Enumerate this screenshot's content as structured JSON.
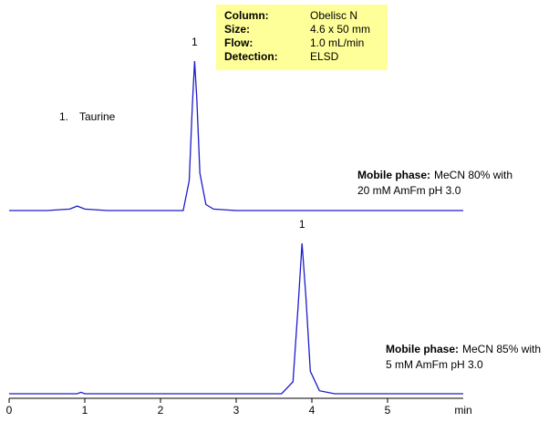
{
  "chart_data": {
    "type": "line",
    "xlabel": "min",
    "xlim": [
      0,
      6
    ],
    "xticks": [
      0,
      1,
      2,
      3,
      4,
      5
    ],
    "ylim": [
      0,
      100
    ],
    "info": [
      {
        "label": "Column:",
        "value": "Obelisc N"
      },
      {
        "label": "Size:",
        "value": "4.6 x 50 mm"
      },
      {
        "label": "Flow:",
        "value": "1.0 mL/min"
      },
      {
        "label": "Detection:",
        "value": "ELSD"
      }
    ],
    "compounds": [
      {
        "number": "1.",
        "name": "Taurine"
      }
    ],
    "series": [
      {
        "color": "#1c1cc8",
        "peak_label": "1",
        "conditions_label": "Mobile phase:",
        "conditions": [
          "MeCN 80% with",
          "20 mM AmFm pH 3.0"
        ],
        "x": [
          0,
          0.5,
          0.8,
          0.9,
          1.0,
          1.3,
          2.0,
          2.3,
          2.38,
          2.42,
          2.45,
          2.48,
          2.52,
          2.6,
          2.7,
          3.0,
          4,
          5,
          6
        ],
        "values": [
          0,
          0,
          1,
          3,
          1,
          0,
          0,
          0,
          20,
          70,
          100,
          75,
          25,
          4,
          1,
          0,
          0,
          0,
          0
        ]
      },
      {
        "color": "#1c1cc8",
        "peak_label": "1",
        "conditions_label": "Mobile phase:",
        "conditions": [
          "MeCN 85% with",
          "5 mM AmFm pH 3.0"
        ],
        "x": [
          0,
          0.5,
          0.9,
          0.95,
          1.0,
          1.5,
          3.0,
          3.6,
          3.75,
          3.82,
          3.87,
          3.92,
          3.98,
          4.1,
          4.3,
          5,
          6
        ],
        "values": [
          0,
          0,
          0,
          1,
          0,
          0,
          0,
          0,
          8,
          60,
          100,
          65,
          15,
          2,
          0,
          0,
          0
        ]
      }
    ]
  }
}
